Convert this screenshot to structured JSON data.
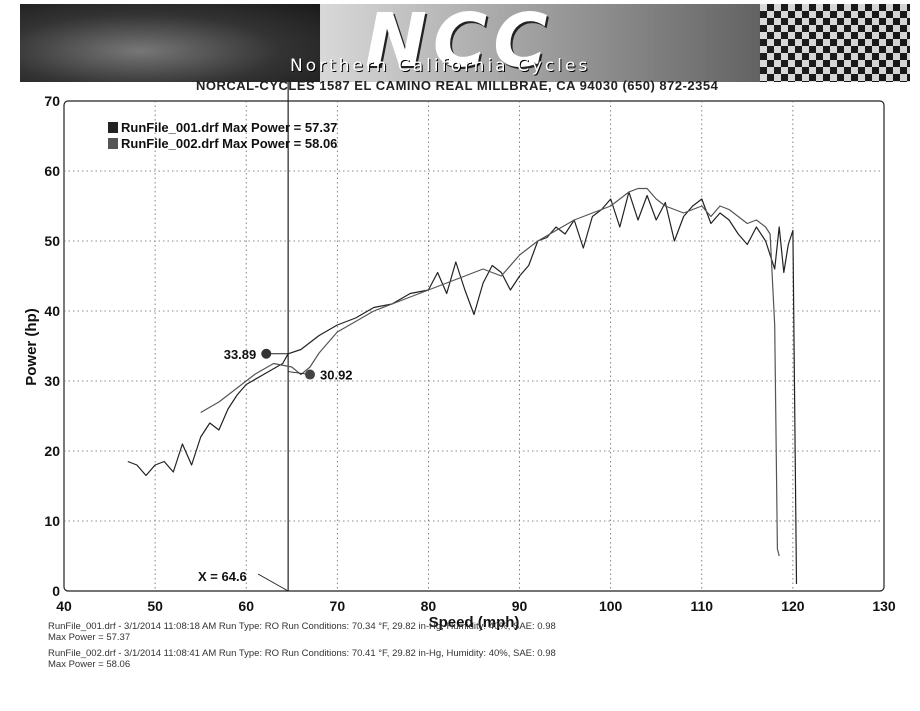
{
  "header": {
    "logo_text": "NCC",
    "logo_subtitle": "Northern California Cycles",
    "address": "NORCAL-CYCLES 1587 EL CAMINO REAL MILLBRAE, CA 94030 (650) 872-2354"
  },
  "chart_data": {
    "type": "line",
    "xlabel": "Speed (mph)",
    "ylabel": "Power (hp)",
    "xlim": [
      40,
      130
    ],
    "ylim": [
      0,
      70
    ],
    "xticks": [
      40,
      50,
      60,
      70,
      80,
      90,
      100,
      110,
      120,
      130
    ],
    "yticks": [
      0,
      10,
      20,
      30,
      40,
      50,
      60,
      70
    ],
    "grid": true,
    "legend_position": "top-left",
    "legend": [
      {
        "label": "RunFile_001.drf Max Power = 57.37",
        "color": "#222222"
      },
      {
        "label": "RunFile_002.drf Max Power = 58.06",
        "color": "#555555"
      }
    ],
    "cursor": {
      "x": 64.6,
      "label": "X = 64.6"
    },
    "markers": [
      {
        "x": 62.2,
        "y": 33.89,
        "label": "33.89"
      },
      {
        "x": 67.0,
        "y": 30.92,
        "label": "30.92"
      }
    ],
    "series": [
      {
        "name": "RunFile_001.drf",
        "color": "#222222",
        "x": [
          47,
          48,
          49,
          50,
          51,
          52,
          53,
          54,
          55,
          56,
          57,
          58,
          59,
          60,
          62,
          64,
          64.6,
          66,
          68,
          70,
          72,
          74,
          76,
          78,
          80,
          81,
          82,
          83,
          84,
          85,
          86,
          87,
          88,
          89,
          90,
          91,
          92,
          93,
          94,
          95,
          96,
          97,
          98,
          99,
          100,
          101,
          102,
          103,
          104,
          105,
          106,
          107,
          108,
          109,
          110,
          111,
          112,
          113,
          114,
          115,
          116,
          117,
          118,
          118.5,
          119,
          119.5,
          120,
          120.4
        ],
        "y": [
          18.5,
          18.0,
          16.5,
          18.0,
          18.5,
          17.0,
          21.0,
          18.0,
          22.0,
          24.0,
          23.0,
          26.0,
          28.0,
          29.5,
          31.0,
          32.5,
          33.89,
          34.5,
          36.5,
          38.0,
          39.0,
          40.5,
          41.0,
          42.5,
          43.0,
          45.5,
          42.5,
          47.0,
          43.0,
          39.5,
          44.0,
          46.5,
          45.5,
          43.0,
          45.0,
          46.5,
          50.0,
          50.5,
          52.0,
          51.0,
          53.0,
          49.0,
          53.5,
          54.5,
          56.0,
          52.0,
          57.0,
          53.0,
          56.5,
          53.0,
          55.5,
          50.0,
          53.5,
          55.0,
          56.0,
          52.5,
          54.0,
          53.0,
          51.0,
          49.5,
          52.0,
          50.0,
          46.0,
          52.0,
          45.5,
          49.5,
          51.5,
          1.0
        ]
      },
      {
        "name": "RunFile_002.drf",
        "color": "#555555",
        "x": [
          55,
          57,
          59,
          61,
          63,
          65,
          66,
          67,
          68,
          70,
          72,
          74,
          76,
          78,
          80,
          82,
          84,
          86,
          88,
          90,
          92,
          94,
          96,
          98,
          100,
          102,
          103,
          104,
          105,
          106,
          108,
          110,
          111,
          112,
          113,
          114,
          115,
          116,
          117,
          117.5,
          118,
          118.3,
          118.5
        ],
        "y": [
          25.5,
          27.0,
          29.0,
          31.0,
          32.5,
          32.0,
          30.92,
          32.0,
          34.0,
          37.0,
          38.5,
          40.0,
          41.0,
          42.0,
          43.0,
          44.0,
          45.0,
          46.0,
          45.0,
          48.0,
          50.0,
          51.5,
          53.0,
          54.0,
          55.0,
          57.0,
          57.5,
          57.5,
          56.0,
          55.0,
          54.0,
          55.0,
          53.5,
          55.0,
          54.5,
          53.5,
          52.5,
          53.0,
          52.0,
          51.0,
          38.0,
          6.0,
          5.0
        ]
      }
    ]
  },
  "footer": {
    "run1_line1": "RunFile_001.drf - 3/1/2014 11:08:18 AM  Run Type: RO  Run Conditions: 70.34 °F, 29.82 in-Hg,  Humidity:  40%, SAE: 0.98",
    "run1_line2": "Max Power = 57.37",
    "run2_line1": "RunFile_002.drf - 3/1/2014 11:08:41 AM  Run Type: RO  Run Conditions: 70.41 °F, 29.82 in-Hg,  Humidity:  40%, SAE: 0.98",
    "run2_line2": "Max Power = 58.06"
  }
}
